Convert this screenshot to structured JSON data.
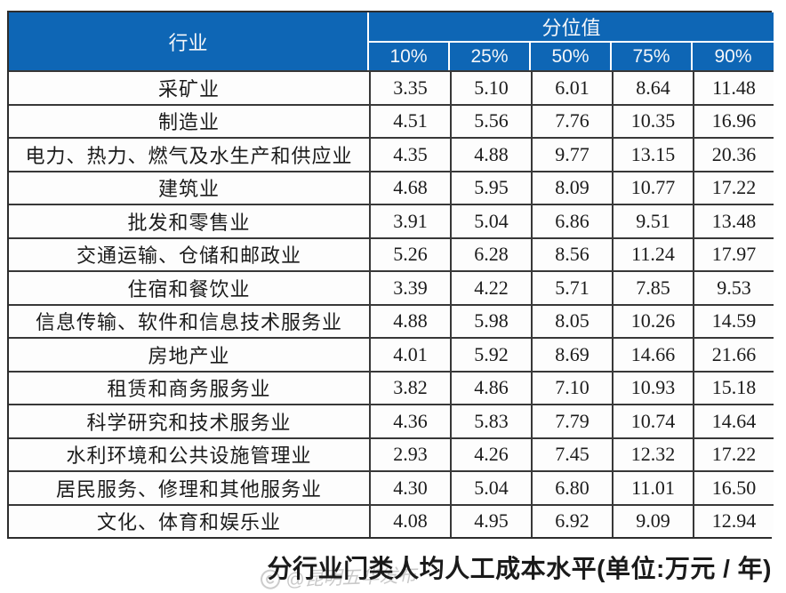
{
  "colors": {
    "header_blue": "#0e66b5",
    "header_text": "#f4f6f9",
    "border_dark": "#383838",
    "outer_border": "#2d2d2d",
    "cell_background": "#fdfdfd",
    "body_text": "#1b1b1b",
    "watermark_gray": "#c9c9c9"
  },
  "table": {
    "industry_header": "行业",
    "percentile_group_header": "分位值",
    "percentile_headers": [
      "10%",
      "25%",
      "50%",
      "75%",
      "90%"
    ],
    "rows": [
      {
        "industry": "采矿业",
        "values": [
          "3.35",
          "5.10",
          "6.01",
          "8.64",
          "11.48"
        ]
      },
      {
        "industry": "制造业",
        "values": [
          "4.51",
          "5.56",
          "7.76",
          "10.35",
          "16.96"
        ]
      },
      {
        "industry": "电力、热力、燃气及水生产和供应业",
        "values": [
          "4.35",
          "4.88",
          "9.77",
          "13.15",
          "20.36"
        ]
      },
      {
        "industry": "建筑业",
        "values": [
          "4.68",
          "5.95",
          "8.09",
          "10.77",
          "17.22"
        ]
      },
      {
        "industry": "批发和零售业",
        "values": [
          "3.91",
          "5.04",
          "6.86",
          "9.51",
          "13.48"
        ]
      },
      {
        "industry": "交通运输、仓储和邮政业",
        "values": [
          "5.26",
          "6.28",
          "8.56",
          "11.24",
          "17.97"
        ]
      },
      {
        "industry": "住宿和餐饮业",
        "values": [
          "3.39",
          "4.22",
          "5.71",
          "7.85",
          "9.53"
        ]
      },
      {
        "industry": "信息传输、软件和信息技术服务业",
        "values": [
          "4.88",
          "5.98",
          "8.05",
          "10.26",
          "14.59"
        ]
      },
      {
        "industry": "房地产业",
        "values": [
          "4.01",
          "5.92",
          "8.69",
          "14.66",
          "21.66"
        ]
      },
      {
        "industry": "租赁和商务服务业",
        "values": [
          "3.82",
          "4.86",
          "7.10",
          "10.93",
          "15.18"
        ]
      },
      {
        "industry": "科学研究和技术服务业",
        "values": [
          "4.36",
          "5.83",
          "7.79",
          "10.74",
          "14.64"
        ]
      },
      {
        "industry": "水利环境和公共设施管理业",
        "values": [
          "2.93",
          "4.26",
          "7.45",
          "12.32",
          "17.22"
        ]
      },
      {
        "industry": "居民服务、修理和其他服务业",
        "values": [
          "4.30",
          "5.04",
          "6.80",
          "11.01",
          "16.50"
        ]
      },
      {
        "industry": "文化、体育和娱乐业",
        "values": [
          "4.08",
          "4.95",
          "6.92",
          "9.09",
          "12.94"
        ]
      }
    ]
  },
  "caption": "分行业门类人均人工成本水平(单位:万元 / 年)",
  "watermark": {
    "text": "@昆明五华发布"
  },
  "chart_data": {
    "type": "table",
    "title": "分行业门类人均人工成本水平(单位:万元 / 年)",
    "column_group_header": "分位值",
    "columns": [
      "行业",
      "10%",
      "25%",
      "50%",
      "75%",
      "90%"
    ],
    "unit": "万元 / 年",
    "rows": [
      [
        "采矿业",
        3.35,
        5.1,
        6.01,
        8.64,
        11.48
      ],
      [
        "制造业",
        4.51,
        5.56,
        7.76,
        10.35,
        16.96
      ],
      [
        "电力、热力、燃气及水生产和供应业",
        4.35,
        4.88,
        9.77,
        13.15,
        20.36
      ],
      [
        "建筑业",
        4.68,
        5.95,
        8.09,
        10.77,
        17.22
      ],
      [
        "批发和零售业",
        3.91,
        5.04,
        6.86,
        9.51,
        13.48
      ],
      [
        "交通运输、仓储和邮政业",
        5.26,
        6.28,
        8.56,
        11.24,
        17.97
      ],
      [
        "住宿和餐饮业",
        3.39,
        4.22,
        5.71,
        7.85,
        9.53
      ],
      [
        "信息传输、软件和信息技术服务业",
        4.88,
        5.98,
        8.05,
        10.26,
        14.59
      ],
      [
        "房地产业",
        4.01,
        5.92,
        8.69,
        14.66,
        21.66
      ],
      [
        "租赁和商务服务业",
        3.82,
        4.86,
        7.1,
        10.93,
        15.18
      ],
      [
        "科学研究和技术服务业",
        4.36,
        5.83,
        7.79,
        10.74,
        14.64
      ],
      [
        "水利环境和公共设施管理业",
        2.93,
        4.26,
        7.45,
        12.32,
        17.22
      ],
      [
        "居民服务、修理和其他服务业",
        4.3,
        5.04,
        6.8,
        11.01,
        16.5
      ],
      [
        "文化、体育和娱乐业",
        4.08,
        4.95,
        6.92,
        9.09,
        12.94
      ]
    ]
  }
}
